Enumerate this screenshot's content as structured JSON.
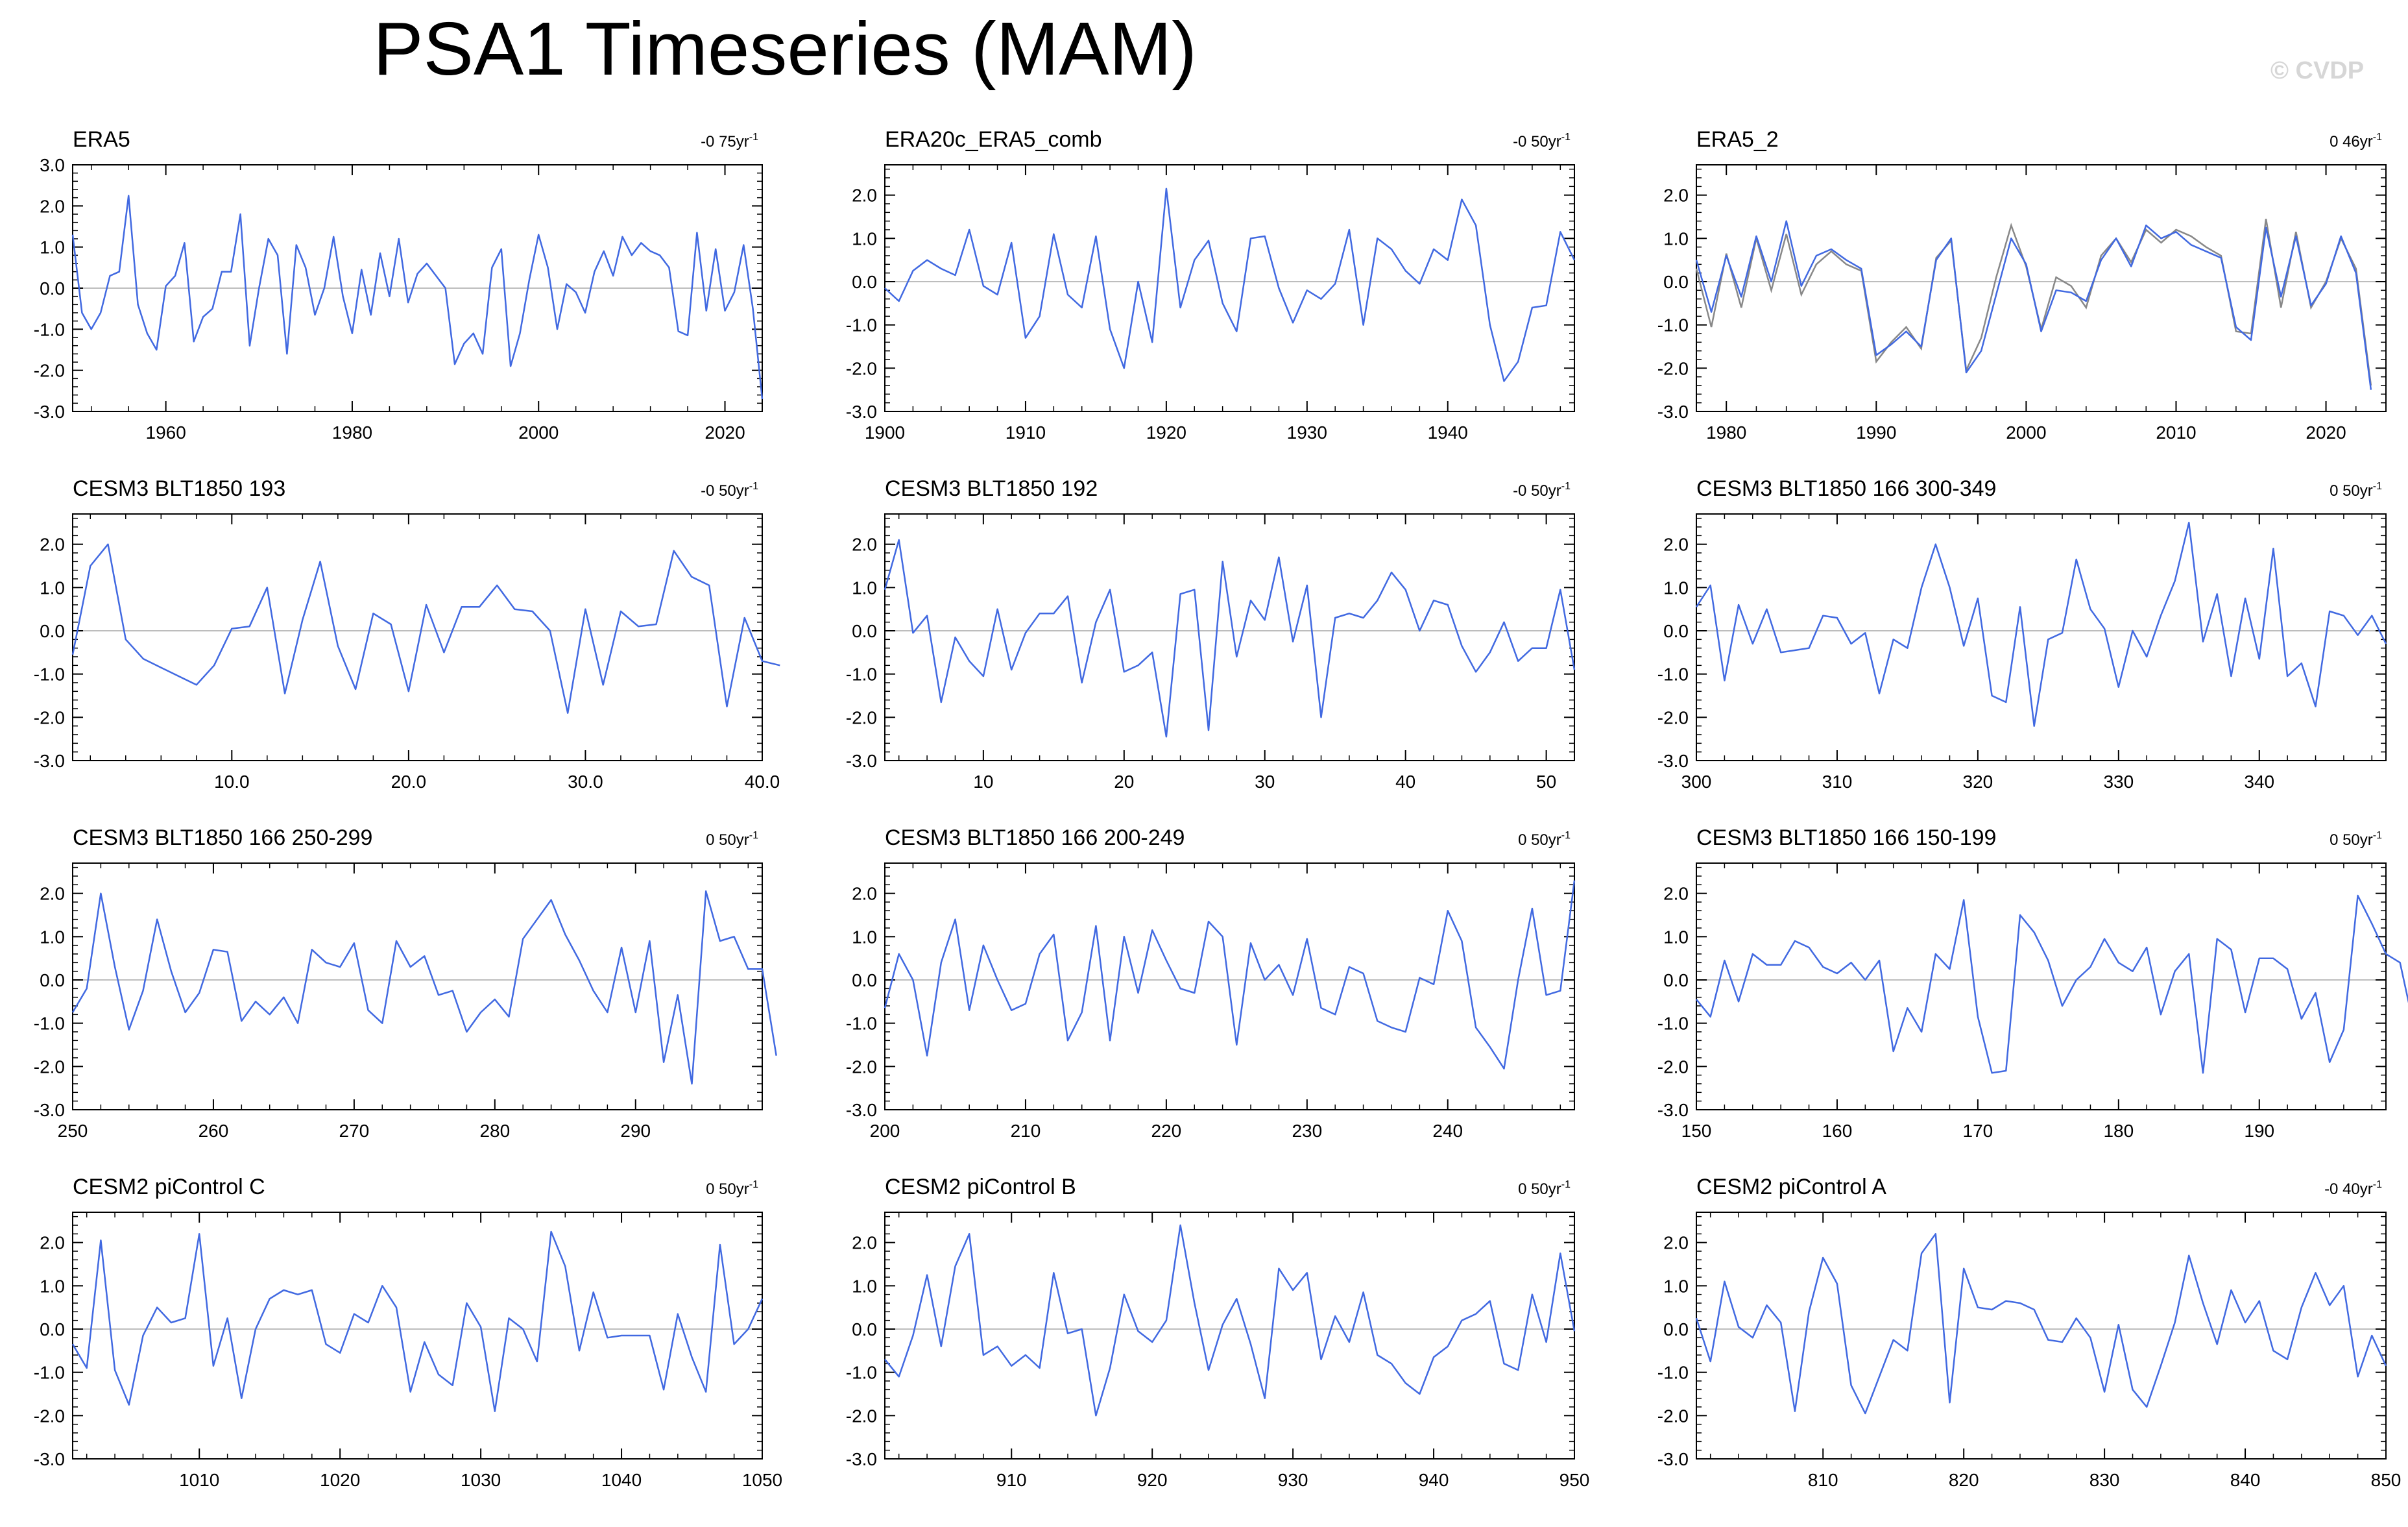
{
  "title": "PSA1 Timeseries (MAM)",
  "watermark": "© CVDP",
  "colors": {
    "series": "#4169e1",
    "series2": "#888888",
    "zero_line": "#bdbdbd",
    "frame": "#000000"
  },
  "chart_data": [
    {
      "type": "line",
      "title": "ERA5",
      "trend": "-0 75yr",
      "trend_exp": "-1",
      "x_start": 1950,
      "xlim": [
        1950,
        2024
      ],
      "ylim": [
        -3,
        3
      ],
      "yticks": [
        3.0,
        2.0,
        1.0,
        0.0,
        -1.0,
        -2.0,
        -3.0
      ],
      "xticks": [
        1960,
        1980,
        2000,
        2020
      ],
      "xtick_labels": [
        "1960",
        "1980",
        "2000",
        "2020"
      ],
      "values": [
        1.3,
        -0.6,
        -1.0,
        -0.6,
        0.3,
        0.4,
        2.25,
        -0.4,
        -1.1,
        -1.5,
        0.05,
        0.3,
        1.1,
        -1.3,
        -0.7,
        -0.5,
        0.4,
        0.4,
        1.8,
        -1.4,
        0.0,
        1.2,
        0.8,
        -1.6,
        1.05,
        0.5,
        -0.65,
        0.0,
        1.25,
        -0.2,
        -1.1,
        0.45,
        -0.65,
        0.85,
        -0.2,
        1.2,
        -0.35,
        0.35,
        0.6,
        0.3,
        0.0,
        -1.85,
        -1.35,
        -1.1,
        -1.6,
        0.5,
        0.95,
        -1.9,
        -1.1,
        0.2,
        1.3,
        0.5,
        -1.0,
        0.1,
        -0.1,
        -0.6,
        0.4,
        0.9,
        0.3,
        1.25,
        0.8,
        1.1,
        0.9,
        0.8,
        0.5,
        -1.05,
        -1.15,
        1.35,
        -0.55,
        0.95,
        -0.55,
        -0.1,
        1.05,
        -0.5,
        -2.7
      ]
    },
    {
      "type": "line",
      "title": "ERA20c_ERA5_comb",
      "trend": "-0 50yr",
      "trend_exp": "-1",
      "x_start": 1900,
      "xlim": [
        1900,
        1949
      ],
      "ylim": [
        -3,
        2.7
      ],
      "yticks": [
        2.0,
        1.0,
        0.0,
        -1.0,
        -2.0,
        -3.0
      ],
      "xticks": [
        1900,
        1910,
        1920,
        1930,
        1940
      ],
      "xtick_labels": [
        "1900",
        "1910",
        "1920",
        "1930",
        "1940"
      ],
      "values": [
        -0.15,
        -0.45,
        0.25,
        0.5,
        0.3,
        0.15,
        1.2,
        -0.1,
        -0.3,
        0.9,
        -1.3,
        -0.8,
        1.1,
        -0.3,
        -0.6,
        1.05,
        -1.1,
        -2.0,
        0.0,
        -1.4,
        2.15,
        -0.6,
        0.5,
        0.95,
        -0.5,
        -1.15,
        1.0,
        1.05,
        -0.15,
        -0.95,
        -0.2,
        -0.4,
        -0.05,
        1.2,
        -1.0,
        1.0,
        0.75,
        0.25,
        -0.05,
        0.75,
        0.5,
        1.9,
        1.3,
        -1.0,
        -2.3,
        -1.85,
        -0.6,
        -0.55,
        1.15,
        0.5
      ]
    },
    {
      "type": "line",
      "title": "ERA5_2",
      "trend": "0 46yr",
      "trend_exp": "-1",
      "x_start": 1978,
      "xlim": [
        1978,
        2024
      ],
      "ylim": [
        -3,
        2.7
      ],
      "yticks": [
        2.0,
        1.0,
        0.0,
        -1.0,
        -2.0,
        -3.0
      ],
      "xticks": [
        1980,
        1990,
        2000,
        2010,
        2020
      ],
      "xtick_labels": [
        "1980",
        "1990",
        "2000",
        "2010",
        "2020"
      ],
      "values": [
        0.5,
        -0.7,
        0.6,
        -0.35,
        1.05,
        0.0,
        1.4,
        -0.1,
        0.6,
        0.75,
        0.5,
        0.3,
        -1.7,
        -1.45,
        -1.15,
        -1.5,
        0.5,
        1.0,
        -2.1,
        -1.6,
        -0.3,
        1.0,
        0.4,
        -1.15,
        -0.2,
        -0.25,
        -0.45,
        0.5,
        1.0,
        0.35,
        1.3,
        1.0,
        1.15,
        0.85,
        0.7,
        0.55,
        -1.05,
        -1.35,
        1.25,
        -0.35,
        1.05,
        -0.55,
        -0.05,
        1.05,
        0.2,
        -2.5
      ],
      "values2": [
        0.3,
        -1.05,
        0.65,
        -0.6,
        1.0,
        -0.2,
        1.1,
        -0.3,
        0.4,
        0.7,
        0.4,
        0.25,
        -1.85,
        -1.4,
        -1.05,
        -1.55,
        0.55,
        0.95,
        -2.05,
        -1.3,
        0.1,
        1.3,
        0.35,
        -1.1,
        0.1,
        -0.1,
        -0.6,
        0.6,
        1.0,
        0.45,
        1.2,
        0.9,
        1.2,
        1.05,
        0.8,
        0.6,
        -1.15,
        -1.2,
        1.45,
        -0.6,
        1.15,
        -0.6,
        0.0,
        1.0,
        0.3,
        -2.4
      ]
    },
    {
      "type": "line",
      "title": "CESM3 BLT1850 193",
      "trend": "-0 50yr",
      "trend_exp": "-1",
      "x_start": 1,
      "xlim": [
        1,
        40
      ],
      "ylim": [
        -3,
        2.7
      ],
      "yticks": [
        2.0,
        1.0,
        0.0,
        -1.0,
        -2.0,
        -3.0
      ],
      "xticks": [
        10,
        20,
        30,
        40
      ],
      "xtick_labels": [
        "10.0",
        "20.0",
        "30.0",
        "40.0"
      ],
      "values": [
        -0.55,
        1.5,
        2.0,
        -0.2,
        -0.65,
        -0.85,
        -1.05,
        -1.25,
        -0.8,
        0.05,
        0.1,
        1.0,
        -1.45,
        0.25,
        1.6,
        -0.35,
        -1.35,
        0.4,
        0.15,
        -1.4,
        0.6,
        -0.5,
        0.55,
        0.55,
        1.05,
        0.5,
        0.45,
        0.0,
        -1.9,
        0.5,
        -1.25,
        0.45,
        0.1,
        0.15,
        1.85,
        1.25,
        1.05,
        -1.75,
        0.3,
        -0.7,
        -0.8
      ]
    },
    {
      "type": "line",
      "title": "CESM3 BLT1850 192",
      "trend": "-0 50yr",
      "trend_exp": "-1",
      "x_start": 3,
      "xlim": [
        3,
        52
      ],
      "ylim": [
        -3,
        2.7
      ],
      "yticks": [
        2.0,
        1.0,
        0.0,
        -1.0,
        -2.0,
        -3.0
      ],
      "xticks": [
        10,
        20,
        30,
        40,
        50
      ],
      "xtick_labels": [
        "10",
        "20",
        "30",
        "40",
        "50"
      ],
      "values": [
        0.95,
        2.1,
        -0.05,
        0.35,
        -1.65,
        -0.15,
        -0.7,
        -1.05,
        0.5,
        -0.9,
        -0.05,
        0.4,
        0.4,
        0.8,
        -1.2,
        0.2,
        0.95,
        -0.95,
        -0.8,
        -0.5,
        -2.45,
        0.85,
        0.95,
        -2.3,
        1.6,
        -0.6,
        0.7,
        0.25,
        1.7,
        -0.25,
        1.05,
        -2.0,
        0.3,
        0.4,
        0.3,
        0.7,
        1.35,
        0.95,
        0.0,
        0.7,
        0.6,
        -0.35,
        -0.95,
        -0.5,
        0.2,
        -0.7,
        -0.4,
        -0.4,
        0.95,
        -0.9
      ]
    },
    {
      "type": "line",
      "title": "CESM3 BLT1850 166 300-349",
      "trend": "0 50yr",
      "trend_exp": "-1",
      "x_start": 300,
      "xlim": [
        300,
        349
      ],
      "ylim": [
        -3,
        2.7
      ],
      "yticks": [
        2.0,
        1.0,
        0.0,
        -1.0,
        -2.0,
        -3.0
      ],
      "xticks": [
        300,
        310,
        320,
        330,
        340
      ],
      "xtick_labels": [
        "300",
        "310",
        "320",
        "330",
        "340"
      ],
      "values": [
        0.55,
        1.05,
        -1.15,
        0.6,
        -0.3,
        0.5,
        -0.5,
        -0.45,
        -0.4,
        0.35,
        0.3,
        -0.3,
        -0.05,
        -1.45,
        -0.2,
        -0.4,
        1.0,
        2.0,
        1.0,
        -0.35,
        0.75,
        -1.5,
        -1.65,
        0.55,
        -2.2,
        -0.2,
        -0.05,
        1.65,
        0.5,
        0.05,
        -1.3,
        0.0,
        -0.6,
        0.35,
        1.15,
        2.5,
        -0.25,
        0.85,
        -1.05,
        0.75,
        -0.65,
        1.9,
        -1.05,
        -0.75,
        -1.75,
        0.45,
        0.35,
        -0.1,
        0.35,
        -0.3
      ]
    },
    {
      "type": "line",
      "title": "CESM3 BLT1850 166 250-299",
      "trend": "0 50yr",
      "trend_exp": "-1",
      "x_start": 250,
      "xlim": [
        250,
        299
      ],
      "ylim": [
        -3,
        2.7
      ],
      "yticks": [
        2.0,
        1.0,
        0.0,
        -1.0,
        -2.0,
        -3.0
      ],
      "xticks": [
        250,
        260,
        270,
        280,
        290
      ],
      "xtick_labels": [
        "250",
        "260",
        "270",
        "280",
        "290"
      ],
      "values": [
        -0.75,
        -0.2,
        2.0,
        0.3,
        -1.15,
        -0.25,
        1.4,
        0.2,
        -0.75,
        -0.3,
        0.7,
        0.65,
        -0.95,
        -0.5,
        -0.8,
        -0.4,
        -1.0,
        0.7,
        0.4,
        0.3,
        0.85,
        -0.7,
        -1.0,
        0.9,
        0.3,
        0.55,
        -0.35,
        -0.25,
        -1.2,
        -0.75,
        -0.45,
        -0.85,
        0.95,
        1.4,
        1.85,
        1.05,
        0.45,
        -0.25,
        -0.75,
        0.75,
        -0.75,
        0.9,
        -1.9,
        -0.35,
        -2.4,
        2.05,
        0.9,
        1.0,
        0.25,
        0.25,
        -1.75
      ]
    },
    {
      "type": "line",
      "title": "CESM3 BLT1850 166 200-249",
      "trend": "0 50yr",
      "trend_exp": "-1",
      "x_start": 200,
      "xlim": [
        200,
        249
      ],
      "ylim": [
        -3,
        2.7
      ],
      "yticks": [
        2.0,
        1.0,
        0.0,
        -1.0,
        -2.0,
        -3.0
      ],
      "xticks": [
        200,
        210,
        220,
        230,
        240
      ],
      "xtick_labels": [
        "200",
        "210",
        "220",
        "230",
        "240"
      ],
      "values": [
        -0.65,
        0.6,
        0.0,
        -1.75,
        0.4,
        1.4,
        -0.7,
        0.8,
        0.0,
        -0.7,
        -0.55,
        0.6,
        1.05,
        -1.4,
        -0.75,
        1.25,
        -1.4,
        1.0,
        -0.3,
        1.15,
        0.45,
        -0.2,
        -0.3,
        1.35,
        1.0,
        -1.5,
        0.85,
        0.0,
        0.35,
        -0.35,
        0.95,
        -0.65,
        -0.8,
        0.3,
        0.15,
        -0.95,
        -1.1,
        -1.2,
        0.05,
        -0.1,
        1.6,
        0.9,
        -1.1,
        -1.55,
        -2.05,
        0.0,
        1.65,
        -0.35,
        -0.25,
        2.3
      ]
    },
    {
      "type": "line",
      "title": "CESM3 BLT1850 166 150-199",
      "trend": "0 50yr",
      "trend_exp": "-1",
      "x_start": 150,
      "xlim": [
        150,
        199
      ],
      "ylim": [
        -3,
        2.7
      ],
      "yticks": [
        2.0,
        1.0,
        0.0,
        -1.0,
        -2.0,
        -3.0
      ],
      "xticks": [
        150,
        160,
        170,
        180,
        190
      ],
      "xtick_labels": [
        "150",
        "160",
        "170",
        "180",
        "190"
      ],
      "values": [
        -0.45,
        -0.85,
        0.45,
        -0.5,
        0.6,
        0.35,
        0.35,
        0.9,
        0.75,
        0.3,
        0.15,
        0.4,
        0.0,
        0.45,
        -1.65,
        -0.65,
        -1.2,
        0.6,
        0.25,
        1.85,
        -0.85,
        -2.15,
        -2.1,
        1.5,
        1.1,
        0.45,
        -0.6,
        0.0,
        0.3,
        0.95,
        0.4,
        0.2,
        0.75,
        -0.8,
        0.2,
        0.6,
        -2.15,
        0.95,
        0.7,
        -0.75,
        0.5,
        0.5,
        0.25,
        -0.9,
        -0.3,
        -1.9,
        -1.15,
        1.95,
        1.3,
        0.6,
        0.4,
        -1.1
      ]
    },
    {
      "type": "line",
      "title": "CESM2 piControl C",
      "trend": "0 50yr",
      "trend_exp": "-1",
      "x_start": 1001,
      "xlim": [
        1001,
        1050
      ],
      "ylim": [
        -3,
        2.7
      ],
      "yticks": [
        2.0,
        1.0,
        0.0,
        -1.0,
        -2.0,
        -3.0
      ],
      "xticks": [
        1010,
        1020,
        1030,
        1040,
        1050
      ],
      "xtick_labels": [
        "1010",
        "1020",
        "1030",
        "1040",
        "1050"
      ],
      "values": [
        -0.35,
        -0.9,
        2.05,
        -0.95,
        -1.75,
        -0.15,
        0.5,
        0.15,
        0.25,
        2.2,
        -0.85,
        0.25,
        -1.6,
        0.0,
        0.7,
        0.9,
        0.8,
        0.9,
        -0.35,
        -0.55,
        0.35,
        0.15,
        1.0,
        0.5,
        -1.45,
        -0.3,
        -1.05,
        -1.3,
        0.6,
        0.05,
        -1.9,
        0.25,
        0.0,
        -0.75,
        2.25,
        1.45,
        -0.5,
        0.85,
        -0.2,
        -0.15,
        -0.15,
        -0.15,
        -1.4,
        0.35,
        -0.65,
        -1.45,
        1.95,
        -0.35,
        0.0,
        0.7
      ]
    },
    {
      "type": "line",
      "title": "CESM2 piControl B",
      "trend": "0 50yr",
      "trend_exp": "-1",
      "x_start": 901,
      "xlim": [
        901,
        950
      ],
      "ylim": [
        -3,
        2.7
      ],
      "yticks": [
        2.0,
        1.0,
        0.0,
        -1.0,
        -2.0,
        -3.0
      ],
      "xticks": [
        910,
        920,
        930,
        940,
        950
      ],
      "xtick_labels": [
        "910",
        "920",
        "930",
        "940",
        "950"
      ],
      "values": [
        -0.7,
        -1.1,
        -0.15,
        1.25,
        -0.4,
        1.45,
        2.2,
        -0.6,
        -0.4,
        -0.85,
        -0.6,
        -0.9,
        1.3,
        -0.1,
        0.0,
        -2.0,
        -0.9,
        0.8,
        -0.05,
        -0.3,
        0.2,
        2.4,
        0.6,
        -0.95,
        0.1,
        0.7,
        -0.35,
        -1.6,
        1.4,
        0.9,
        1.3,
        -0.7,
        0.3,
        -0.3,
        0.85,
        -0.6,
        -0.8,
        -1.25,
        -1.5,
        -0.65,
        -0.4,
        0.2,
        0.35,
        0.65,
        -0.8,
        -0.95,
        0.8,
        -0.3,
        1.75,
        -0.05
      ]
    },
    {
      "type": "line",
      "title": "CESM2 piControl A",
      "trend": "-0 40yr",
      "trend_exp": "-1",
      "x_start": 801,
      "xlim": [
        801,
        850
      ],
      "ylim": [
        -3,
        2.7
      ],
      "yticks": [
        2.0,
        1.0,
        0.0,
        -1.0,
        -2.0,
        -3.0
      ],
      "xticks": [
        810,
        820,
        830,
        840,
        850
      ],
      "xtick_labels": [
        "810",
        "820",
        "830",
        "840",
        "850"
      ],
      "values": [
        0.25,
        -0.75,
        1.1,
        0.05,
        -0.2,
        0.55,
        0.15,
        -1.9,
        0.4,
        1.65,
        1.05,
        -1.3,
        -1.95,
        -1.1,
        -0.25,
        -0.5,
        1.75,
        2.2,
        -1.7,
        1.4,
        0.5,
        0.45,
        0.65,
        0.6,
        0.45,
        -0.25,
        -0.3,
        0.25,
        -0.2,
        -1.45,
        0.1,
        -1.4,
        -1.8,
        -0.85,
        0.15,
        1.7,
        0.6,
        -0.35,
        0.9,
        0.15,
        0.65,
        -0.5,
        -0.7,
        0.5,
        1.3,
        0.55,
        1.0,
        -1.1,
        -0.15,
        -0.85
      ]
    }
  ]
}
